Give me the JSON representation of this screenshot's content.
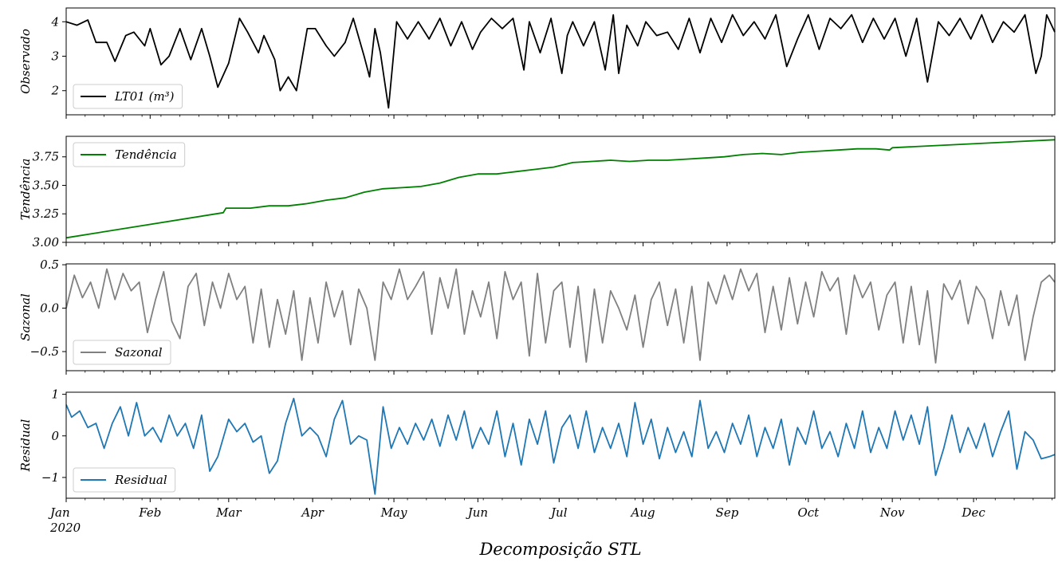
{
  "chart_data": {
    "type": "line",
    "xlabel": "Decomposição STL",
    "x_range": [
      "2020-01-01",
      "2020-12-31"
    ],
    "x_ticks": [
      {
        "date": "2020-01-01",
        "label": "Jan",
        "sub": "2020"
      },
      {
        "date": "2020-02-01",
        "label": "Feb",
        "sub": ""
      },
      {
        "date": "2020-03-01",
        "label": "Mar",
        "sub": ""
      },
      {
        "date": "2020-04-01",
        "label": "Apr",
        "sub": ""
      },
      {
        "date": "2020-05-01",
        "label": "May",
        "sub": ""
      },
      {
        "date": "2020-06-01",
        "label": "Jun",
        "sub": ""
      },
      {
        "date": "2020-07-01",
        "label": "Jul",
        "sub": ""
      },
      {
        "date": "2020-08-01",
        "label": "Aug",
        "sub": ""
      },
      {
        "date": "2020-09-01",
        "label": "Sep",
        "sub": ""
      },
      {
        "date": "2020-10-01",
        "label": "Oct",
        "sub": ""
      },
      {
        "date": "2020-11-01",
        "label": "Nov",
        "sub": ""
      },
      {
        "date": "2020-12-01",
        "label": "Dec",
        "sub": ""
      }
    ],
    "panels": [
      {
        "key": "observed",
        "ylabel": "Observado",
        "legend": "LT01 (m³)",
        "color": "#000000",
        "ylim": [
          1.3,
          4.4
        ],
        "yticks": [
          {
            "v": 2,
            "label": "2"
          },
          {
            "v": 3,
            "label": "3"
          },
          {
            "v": 4,
            "label": "4"
          }
        ],
        "x": [
          "2020-01-01",
          "2020-01-05",
          "2020-01-09",
          "2020-01-12",
          "2020-01-16",
          "2020-01-19",
          "2020-01-23",
          "2020-01-26",
          "2020-01-30",
          "2020-02-01",
          "2020-02-05",
          "2020-02-08",
          "2020-02-12",
          "2020-02-16",
          "2020-02-20",
          "2020-02-23",
          "2020-02-26",
          "2020-03-01",
          "2020-03-05",
          "2020-03-08",
          "2020-03-12",
          "2020-03-14",
          "2020-03-18",
          "2020-03-20",
          "2020-03-23",
          "2020-03-26",
          "2020-03-30",
          "2020-04-02",
          "2020-04-06",
          "2020-04-09",
          "2020-04-13",
          "2020-04-16",
          "2020-04-20",
          "2020-04-22",
          "2020-04-24",
          "2020-04-26",
          "2020-04-29",
          "2020-05-02",
          "2020-05-06",
          "2020-05-10",
          "2020-05-14",
          "2020-05-18",
          "2020-05-22",
          "2020-05-26",
          "2020-05-30",
          "2020-06-02",
          "2020-06-06",
          "2020-06-10",
          "2020-06-14",
          "2020-06-18",
          "2020-06-20",
          "2020-06-24",
          "2020-06-28",
          "2020-07-02",
          "2020-07-04",
          "2020-07-06",
          "2020-07-10",
          "2020-07-14",
          "2020-07-18",
          "2020-07-21",
          "2020-07-23",
          "2020-07-26",
          "2020-07-30",
          "2020-08-02",
          "2020-08-06",
          "2020-08-10",
          "2020-08-14",
          "2020-08-18",
          "2020-08-22",
          "2020-08-26",
          "2020-08-30",
          "2020-09-03",
          "2020-09-07",
          "2020-09-11",
          "2020-09-15",
          "2020-09-19",
          "2020-09-23",
          "2020-09-27",
          "2020-10-01",
          "2020-10-05",
          "2020-10-09",
          "2020-10-13",
          "2020-10-17",
          "2020-10-21",
          "2020-10-25",
          "2020-10-29",
          "2020-11-02",
          "2020-11-06",
          "2020-11-10",
          "2020-11-14",
          "2020-11-18",
          "2020-11-22",
          "2020-11-26",
          "2020-11-30",
          "2020-12-04",
          "2020-12-08",
          "2020-12-12",
          "2020-12-16",
          "2020-12-20",
          "2020-12-24",
          "2020-12-26",
          "2020-12-28",
          "2020-12-31"
        ],
        "y": [
          4.0,
          3.9,
          4.05,
          3.4,
          3.4,
          2.85,
          3.6,
          3.7,
          3.3,
          3.8,
          2.75,
          3.0,
          3.8,
          2.9,
          3.8,
          3.0,
          2.1,
          2.8,
          4.1,
          3.7,
          3.1,
          3.6,
          2.9,
          2.0,
          2.4,
          2.0,
          3.8,
          3.8,
          3.3,
          3.0,
          3.4,
          4.1,
          3.0,
          2.4,
          3.8,
          3.1,
          1.5,
          4.0,
          3.5,
          4.0,
          3.5,
          4.1,
          3.3,
          4.0,
          3.2,
          3.7,
          4.1,
          3.8,
          4.1,
          2.6,
          4.0,
          3.1,
          4.1,
          2.5,
          3.6,
          4.0,
          3.3,
          4.0,
          2.6,
          4.2,
          2.5,
          3.9,
          3.3,
          4.0,
          3.6,
          3.7,
          3.2,
          4.1,
          3.1,
          4.1,
          3.4,
          4.2,
          3.6,
          4.0,
          3.5,
          4.2,
          2.7,
          3.5,
          4.2,
          3.2,
          4.1,
          3.8,
          4.2,
          3.4,
          4.1,
          3.5,
          4.1,
          3.0,
          4.1,
          2.25,
          4.0,
          3.6,
          4.1,
          3.5,
          4.2,
          3.4,
          4.0,
          3.7,
          4.2,
          2.5,
          3.0,
          4.2,
          3.7
        ]
      },
      {
        "key": "trend",
        "ylabel": "Tendência",
        "legend": "Tendência",
        "color": "#008000",
        "ylim": [
          3.0,
          3.93
        ],
        "yticks": [
          {
            "v": 3.0,
            "label": "3.00"
          },
          {
            "v": 3.25,
            "label": "3.25"
          },
          {
            "v": 3.5,
            "label": "3.50"
          },
          {
            "v": 3.75,
            "label": "3.75"
          }
        ],
        "x": [
          "2020-01-01",
          "2020-02-28",
          "2020-02-29",
          "2020-03-02",
          "2020-03-09",
          "2020-03-16",
          "2020-03-23",
          "2020-03-30",
          "2020-04-06",
          "2020-04-13",
          "2020-04-20",
          "2020-04-27",
          "2020-05-04",
          "2020-05-11",
          "2020-05-18",
          "2020-05-25",
          "2020-06-01",
          "2020-06-08",
          "2020-06-15",
          "2020-06-22",
          "2020-06-29",
          "2020-07-06",
          "2020-07-13",
          "2020-07-20",
          "2020-07-27",
          "2020-08-03",
          "2020-08-10",
          "2020-08-17",
          "2020-08-24",
          "2020-08-31",
          "2020-09-07",
          "2020-09-14",
          "2020-09-21",
          "2020-09-28",
          "2020-10-05",
          "2020-10-12",
          "2020-10-19",
          "2020-10-26",
          "2020-10-31",
          "2020-11-01",
          "2020-12-31"
        ],
        "y": [
          3.04,
          3.26,
          3.3,
          3.3,
          3.3,
          3.32,
          3.32,
          3.34,
          3.37,
          3.39,
          3.44,
          3.47,
          3.48,
          3.49,
          3.52,
          3.57,
          3.6,
          3.6,
          3.62,
          3.64,
          3.66,
          3.7,
          3.71,
          3.72,
          3.71,
          3.72,
          3.72,
          3.73,
          3.74,
          3.75,
          3.77,
          3.78,
          3.77,
          3.79,
          3.8,
          3.81,
          3.82,
          3.82,
          3.81,
          3.83,
          3.9
        ]
      },
      {
        "key": "seasonal",
        "ylabel": "Sazonal",
        "legend": "Sazonal",
        "color": "#808080",
        "ylim": [
          -0.72,
          0.51
        ],
        "yticks": [
          {
            "v": -0.5,
            "label": "−0.5"
          },
          {
            "v": 0.0,
            "label": "0.0"
          },
          {
            "v": 0.5,
            "label": "0.5"
          }
        ],
        "x": [
          "2020-01-01",
          "2020-01-04",
          "2020-01-07",
          "2020-01-10",
          "2020-01-13",
          "2020-01-16",
          "2020-01-19",
          "2020-01-22",
          "2020-01-25",
          "2020-01-28",
          "2020-01-31",
          "2020-02-03",
          "2020-02-06",
          "2020-02-09",
          "2020-02-12",
          "2020-02-15",
          "2020-02-18",
          "2020-02-21",
          "2020-02-24",
          "2020-02-27",
          "2020-03-01",
          "2020-03-04",
          "2020-03-07",
          "2020-03-10",
          "2020-03-13",
          "2020-03-16",
          "2020-03-19",
          "2020-03-22",
          "2020-03-25",
          "2020-03-28",
          "2020-03-31",
          "2020-04-03",
          "2020-04-06",
          "2020-04-09",
          "2020-04-12",
          "2020-04-15",
          "2020-04-18",
          "2020-04-21",
          "2020-04-24",
          "2020-04-27",
          "2020-04-30",
          "2020-05-03",
          "2020-05-06",
          "2020-05-09",
          "2020-05-12",
          "2020-05-15",
          "2020-05-18",
          "2020-05-21",
          "2020-05-24",
          "2020-05-27",
          "2020-05-30",
          "2020-06-02",
          "2020-06-05",
          "2020-06-08",
          "2020-06-11",
          "2020-06-14",
          "2020-06-17",
          "2020-06-20",
          "2020-06-23",
          "2020-06-26",
          "2020-06-29",
          "2020-07-02",
          "2020-07-05",
          "2020-07-08",
          "2020-07-11",
          "2020-07-14",
          "2020-07-17",
          "2020-07-20",
          "2020-07-23",
          "2020-07-26",
          "2020-07-29",
          "2020-08-01",
          "2020-08-04",
          "2020-08-07",
          "2020-08-10",
          "2020-08-13",
          "2020-08-16",
          "2020-08-19",
          "2020-08-22",
          "2020-08-25",
          "2020-08-28",
          "2020-08-31",
          "2020-09-03",
          "2020-09-06",
          "2020-09-09",
          "2020-09-12",
          "2020-09-15",
          "2020-09-18",
          "2020-09-21",
          "2020-09-24",
          "2020-09-27",
          "2020-09-30",
          "2020-10-03",
          "2020-10-06",
          "2020-10-09",
          "2020-10-12",
          "2020-10-15",
          "2020-10-18",
          "2020-10-21",
          "2020-10-24",
          "2020-10-27",
          "2020-10-30",
          "2020-11-02",
          "2020-11-05",
          "2020-11-08",
          "2020-11-11",
          "2020-11-14",
          "2020-11-17",
          "2020-11-20",
          "2020-11-23",
          "2020-11-26",
          "2020-11-29",
          "2020-12-02",
          "2020-12-05",
          "2020-12-08",
          "2020-12-11",
          "2020-12-14",
          "2020-12-17",
          "2020-12-20",
          "2020-12-23",
          "2020-12-26",
          "2020-12-29",
          "2020-12-31"
        ],
        "y": [
          0.0,
          0.38,
          0.12,
          0.3,
          0.0,
          0.45,
          0.1,
          0.4,
          0.2,
          0.3,
          -0.28,
          0.1,
          0.42,
          -0.15,
          -0.35,
          0.25,
          0.4,
          -0.2,
          0.3,
          0.0,
          0.4,
          0.1,
          0.25,
          -0.4,
          0.22,
          -0.45,
          0.1,
          -0.3,
          0.2,
          -0.6,
          0.12,
          -0.4,
          0.3,
          -0.1,
          0.2,
          -0.42,
          0.22,
          0.0,
          -0.6,
          0.3,
          0.1,
          0.45,
          0.1,
          0.25,
          0.42,
          -0.3,
          0.35,
          0.0,
          0.45,
          -0.3,
          0.2,
          -0.1,
          0.3,
          -0.35,
          0.42,
          0.1,
          0.3,
          -0.55,
          0.4,
          -0.4,
          0.2,
          0.3,
          -0.45,
          0.25,
          -0.62,
          0.22,
          -0.4,
          0.2,
          0.0,
          -0.25,
          0.15,
          -0.45,
          0.1,
          0.3,
          -0.2,
          0.22,
          -0.4,
          0.25,
          -0.6,
          0.3,
          0.05,
          0.38,
          0.1,
          0.45,
          0.2,
          0.4,
          -0.28,
          0.25,
          -0.25,
          0.35,
          -0.18,
          0.3,
          -0.1,
          0.42,
          0.2,
          0.35,
          -0.3,
          0.38,
          0.12,
          0.3,
          -0.25,
          0.15,
          0.3,
          -0.4,
          0.25,
          -0.42,
          0.2,
          -0.63,
          0.28,
          0.1,
          0.32,
          -0.18,
          0.25,
          0.1,
          -0.35,
          0.2,
          -0.2,
          0.15,
          -0.6,
          -0.1,
          0.3,
          0.38,
          0.3
        ]
      },
      {
        "key": "residual",
        "ylabel": "Residual",
        "legend": "Residual",
        "color": "#1f77b4",
        "ylim": [
          -1.5,
          1.05
        ],
        "yticks": [
          {
            "v": -1,
            "label": "−1"
          },
          {
            "v": 0,
            "label": "0"
          },
          {
            "v": 1,
            "label": "1"
          }
        ],
        "x": [
          "2020-01-01",
          "2020-01-03",
          "2020-01-06",
          "2020-01-09",
          "2020-01-12",
          "2020-01-15",
          "2020-01-18",
          "2020-01-21",
          "2020-01-24",
          "2020-01-27",
          "2020-01-30",
          "2020-02-02",
          "2020-02-05",
          "2020-02-08",
          "2020-02-11",
          "2020-02-14",
          "2020-02-17",
          "2020-02-20",
          "2020-02-23",
          "2020-02-26",
          "2020-03-01",
          "2020-03-04",
          "2020-03-07",
          "2020-03-10",
          "2020-03-13",
          "2020-03-16",
          "2020-03-19",
          "2020-03-22",
          "2020-03-25",
          "2020-03-28",
          "2020-03-31",
          "2020-04-03",
          "2020-04-06",
          "2020-04-09",
          "2020-04-12",
          "2020-04-15",
          "2020-04-18",
          "2020-04-21",
          "2020-04-24",
          "2020-04-27",
          "2020-04-30",
          "2020-05-03",
          "2020-05-06",
          "2020-05-09",
          "2020-05-12",
          "2020-05-15",
          "2020-05-18",
          "2020-05-21",
          "2020-05-24",
          "2020-05-27",
          "2020-05-30",
          "2020-06-02",
          "2020-06-05",
          "2020-06-08",
          "2020-06-11",
          "2020-06-14",
          "2020-06-17",
          "2020-06-20",
          "2020-06-23",
          "2020-06-26",
          "2020-06-29",
          "2020-07-02",
          "2020-07-05",
          "2020-07-08",
          "2020-07-11",
          "2020-07-14",
          "2020-07-17",
          "2020-07-20",
          "2020-07-23",
          "2020-07-26",
          "2020-07-29",
          "2020-08-01",
          "2020-08-04",
          "2020-08-07",
          "2020-08-10",
          "2020-08-13",
          "2020-08-16",
          "2020-08-19",
          "2020-08-22",
          "2020-08-25",
          "2020-08-28",
          "2020-08-31",
          "2020-09-03",
          "2020-09-06",
          "2020-09-09",
          "2020-09-12",
          "2020-09-15",
          "2020-09-18",
          "2020-09-21",
          "2020-09-24",
          "2020-09-27",
          "2020-09-30",
          "2020-10-03",
          "2020-10-06",
          "2020-10-09",
          "2020-10-12",
          "2020-10-15",
          "2020-10-18",
          "2020-10-21",
          "2020-10-24",
          "2020-10-27",
          "2020-10-30",
          "2020-11-02",
          "2020-11-05",
          "2020-11-08",
          "2020-11-11",
          "2020-11-14",
          "2020-11-17",
          "2020-11-20",
          "2020-11-23",
          "2020-11-26",
          "2020-11-29",
          "2020-12-02",
          "2020-12-05",
          "2020-12-08",
          "2020-12-11",
          "2020-12-14",
          "2020-12-17",
          "2020-12-20",
          "2020-12-23",
          "2020-12-26",
          "2020-12-29",
          "2020-12-31"
        ],
        "y": [
          0.75,
          0.45,
          0.6,
          0.2,
          0.3,
          -0.3,
          0.3,
          0.7,
          0.0,
          0.8,
          0.0,
          0.2,
          -0.15,
          0.5,
          0.0,
          0.3,
          -0.3,
          0.5,
          -0.85,
          -0.5,
          0.4,
          0.1,
          0.3,
          -0.15,
          0.0,
          -0.9,
          -0.6,
          0.3,
          0.9,
          0.0,
          0.2,
          0.0,
          -0.5,
          0.4,
          0.85,
          -0.2,
          0.0,
          -0.1,
          -1.4,
          0.7,
          -0.3,
          0.2,
          -0.2,
          0.3,
          -0.1,
          0.4,
          -0.25,
          0.5,
          -0.1,
          0.6,
          -0.3,
          0.2,
          -0.2,
          0.6,
          -0.5,
          0.3,
          -0.7,
          0.4,
          -0.2,
          0.6,
          -0.65,
          0.2,
          0.5,
          -0.3,
          0.6,
          -0.4,
          0.2,
          -0.3,
          0.3,
          -0.5,
          0.8,
          -0.2,
          0.4,
          -0.55,
          0.2,
          -0.4,
          0.1,
          -0.5,
          0.85,
          -0.3,
          0.1,
          -0.4,
          0.3,
          -0.2,
          0.5,
          -0.5,
          0.2,
          -0.3,
          0.4,
          -0.7,
          0.2,
          -0.2,
          0.6,
          -0.3,
          0.1,
          -0.5,
          0.3,
          -0.3,
          0.6,
          -0.4,
          0.2,
          -0.3,
          0.6,
          -0.1,
          0.5,
          -0.2,
          0.7,
          -0.95,
          -0.3,
          0.5,
          -0.4,
          0.2,
          -0.3,
          0.3,
          -0.5,
          0.1,
          0.6,
          -0.8,
          0.1,
          -0.1,
          -0.55,
          -0.5,
          -0.45
        ]
      }
    ]
  }
}
